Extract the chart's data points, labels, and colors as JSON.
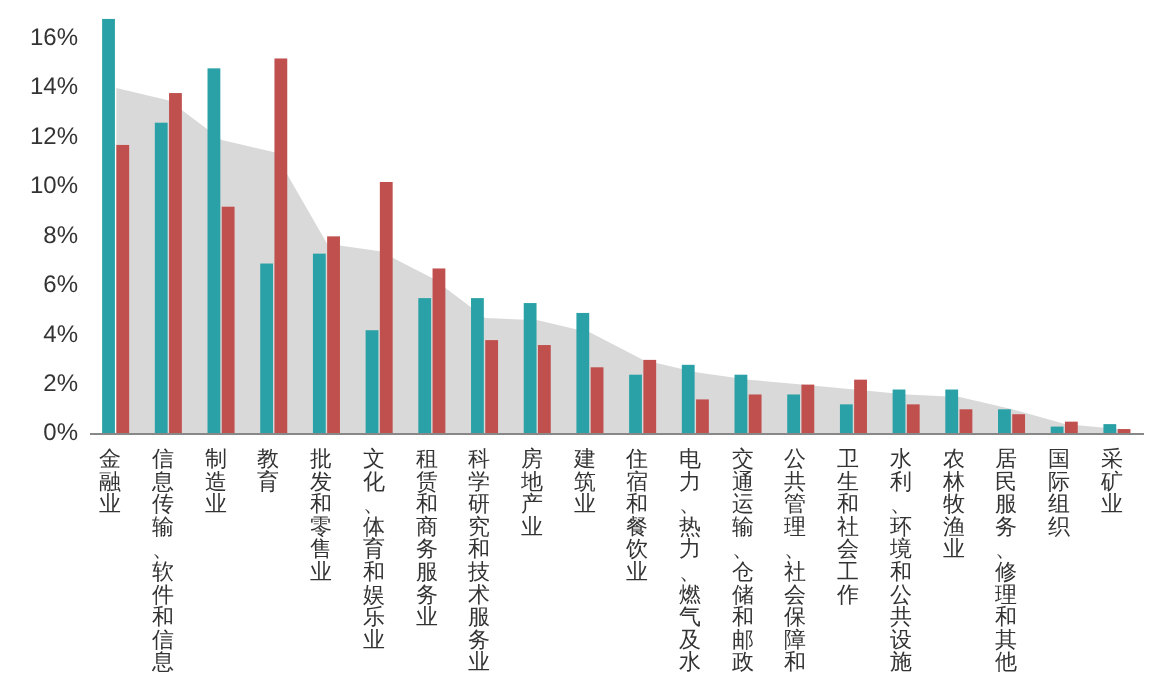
{
  "chart_data": {
    "type": "bar",
    "categories": [
      "金融业",
      "信息传输、软件和信息",
      "制造业",
      "教育",
      "批发和零售业",
      "文化、体育和娱乐业",
      "租赁和商务服务业",
      "科学研究和技术服务业",
      "房地产业",
      "建筑业",
      "住宿和餐饮业",
      "电力、热力、燃气及水",
      "交通运输、仓储和邮政",
      "公共管理、社会保障和",
      "卫生和社会工作",
      "水利、环境和公共设施",
      "农林牧渔业",
      "居民服务、修理和其他",
      "国际组织",
      "采矿业"
    ],
    "series": [
      {
        "type": "area",
        "color": "#d9d9d9",
        "values": [
          14.0,
          13.5,
          11.9,
          11.4,
          7.7,
          7.4,
          6.3,
          4.7,
          4.6,
          4.1,
          3.0,
          2.5,
          2.2,
          2.0,
          1.8,
          1.6,
          1.5,
          1.0,
          0.4,
          0.2
        ]
      },
      {
        "color": "#2aa1a6",
        "values": [
          16.8,
          12.6,
          14.8,
          6.9,
          7.3,
          4.2,
          5.5,
          5.5,
          5.3,
          4.9,
          2.4,
          2.8,
          2.4,
          1.6,
          1.2,
          1.8,
          1.8,
          1.0,
          0.3,
          0.4
        ]
      },
      {
        "color": "#c0504d",
        "values": [
          11.7,
          13.8,
          9.2,
          15.2,
          8.0,
          10.2,
          6.7,
          3.8,
          3.6,
          2.7,
          3.0,
          1.4,
          1.6,
          2.0,
          2.2,
          1.2,
          1.0,
          0.8,
          0.5,
          0.2
        ]
      }
    ],
    "ylim": [
      0,
      17
    ],
    "yticks": [
      {
        "value": 0,
        "label": "0%"
      },
      {
        "value": 2,
        "label": "2%"
      },
      {
        "value": 4,
        "label": "4%"
      },
      {
        "value": 6,
        "label": "6%"
      },
      {
        "value": 8,
        "label": "8%"
      },
      {
        "value": 10,
        "label": "10%"
      },
      {
        "value": 12,
        "label": "12%"
      },
      {
        "value": 14,
        "label": "14%"
      },
      {
        "value": 16,
        "label": "16%"
      }
    ],
    "grid": false
  }
}
